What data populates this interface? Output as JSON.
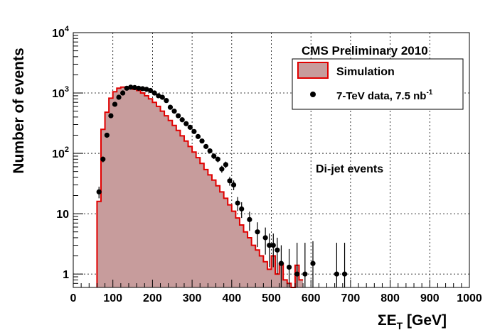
{
  "chart_data": {
    "type": "histogram",
    "title": "CMS Preliminary 2010",
    "annotation": "Di-jet events",
    "xlabel_main": "ΣE",
    "xlabel_sub": "T",
    "xlabel_unit": " [GeV]",
    "ylabel": "Number of events",
    "xlim": [
      0,
      1000
    ],
    "ylim": [
      0.6,
      10000
    ],
    "yscale": "log",
    "grid": true,
    "legend_position": "top-right",
    "x_ticks": [
      "0",
      "100",
      "200",
      "300",
      "400",
      "500",
      "600",
      "700",
      "800",
      "900",
      "1000"
    ],
    "y_ticks": [
      {
        "value": 1,
        "base": "1",
        "exp": ""
      },
      {
        "value": 10,
        "base": "10",
        "exp": ""
      },
      {
        "value": 100,
        "base": "10",
        "exp": "2"
      },
      {
        "value": 1000,
        "base": "10",
        "exp": "3"
      },
      {
        "value": 10000,
        "base": "10",
        "exp": "4"
      }
    ],
    "series": [
      {
        "name": "Simulation",
        "kind": "histogram",
        "fill_color": "#c79c9c",
        "line_color": "#e00000",
        "bin_width": 10,
        "bin_edges_start": 60,
        "values": [
          16,
          250,
          480,
          820,
          1050,
          1200,
          1250,
          1250,
          1200,
          1150,
          1100,
          1000,
          900,
          800,
          700,
          600,
          500,
          420,
          350,
          290,
          240,
          195,
          160,
          130,
          105,
          85,
          68,
          54,
          44,
          36,
          29,
          23,
          18,
          14,
          11,
          8.5,
          6.5,
          5,
          4,
          3,
          2.5,
          2,
          1.6,
          1.2,
          2.0,
          1.0,
          1.5,
          0.8,
          0.7,
          0.6,
          1.4,
          0.8
        ]
      },
      {
        "name": "7-TeV data, 7.5 nb",
        "name_sup": "-1",
        "kind": "points",
        "marker_color": "#000000",
        "x": [
          65,
          75,
          85,
          95,
          105,
          115,
          125,
          135,
          145,
          155,
          165,
          175,
          185,
          195,
          205,
          215,
          225,
          235,
          245,
          255,
          265,
          275,
          285,
          295,
          305,
          315,
          325,
          335,
          345,
          355,
          365,
          375,
          385,
          395,
          405,
          415,
          425,
          445,
          465,
          485,
          495,
          505,
          515,
          525,
          545,
          565,
          585,
          605,
          665,
          685
        ],
        "y": [
          23,
          80,
          200,
          420,
          650,
          850,
          1000,
          1200,
          1250,
          1230,
          1200,
          1180,
          1150,
          1100,
          1000,
          900,
          850,
          750,
          580,
          500,
          420,
          360,
          310,
          270,
          230,
          190,
          160,
          130,
          110,
          90,
          80,
          55,
          65,
          35,
          30,
          15,
          12,
          8,
          5,
          4,
          3,
          3,
          2.5,
          1.5,
          1.3,
          1,
          1,
          1.5,
          1,
          1
        ],
        "err_lo": [
          5,
          9,
          14,
          20,
          26,
          29,
          32,
          35,
          35,
          35,
          35,
          34,
          34,
          33,
          32,
          30,
          29,
          27,
          24,
          22,
          20,
          19,
          18,
          16,
          15,
          14,
          13,
          11,
          10,
          9.5,
          9,
          7.4,
          8,
          5.9,
          5.5,
          3.9,
          3.5,
          2.8,
          2.2,
          1.9,
          1.7,
          1.7,
          1.5,
          1.1,
          1.0,
          0.83,
          0.83,
          1.0,
          0.83,
          0.83
        ],
        "err_hi": [
          5,
          9,
          14,
          20,
          26,
          29,
          32,
          35,
          35,
          35,
          35,
          34,
          34,
          33,
          32,
          30,
          29,
          27,
          24,
          22,
          20,
          19,
          18,
          16,
          15,
          14,
          13,
          11,
          10,
          9.5,
          9,
          7.4,
          8,
          5.9,
          5.5,
          3.9,
          3.5,
          2.8,
          2.2,
          1.9,
          1.7,
          1.7,
          1.5,
          1.5,
          1.3,
          2.3,
          2.3,
          2.0,
          2.3,
          2.3
        ]
      }
    ]
  }
}
